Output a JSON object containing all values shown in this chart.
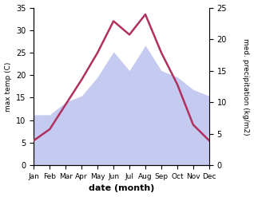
{
  "months": [
    "Jan",
    "Feb",
    "Mar",
    "Apr",
    "May",
    "Jun",
    "Jul",
    "Aug",
    "Sep",
    "Oct",
    "Nov",
    "Dec"
  ],
  "temperature": [
    5.5,
    8.0,
    13.5,
    19.0,
    25.0,
    32.0,
    29.0,
    33.5,
    25.0,
    18.0,
    9.0,
    5.5
  ],
  "precipitation": [
    8,
    8,
    10,
    11,
    14,
    18,
    15,
    19,
    15,
    14,
    12,
    11
  ],
  "temp_color": "#b03060",
  "precip_fill_color": "#c5caf0",
  "temp_ylim": [
    0,
    35
  ],
  "precip_ylim": [
    0,
    25
  ],
  "temp_yticks": [
    0,
    5,
    10,
    15,
    20,
    25,
    30,
    35
  ],
  "precip_yticks": [
    0,
    5,
    10,
    15,
    20,
    25
  ],
  "xlabel": "date (month)",
  "ylabel_left": "max temp (C)",
  "ylabel_right": "med. precipitation (kg/m2)",
  "background_color": "#ffffff",
  "line_width": 1.8,
  "fig_width": 3.18,
  "fig_height": 2.47
}
